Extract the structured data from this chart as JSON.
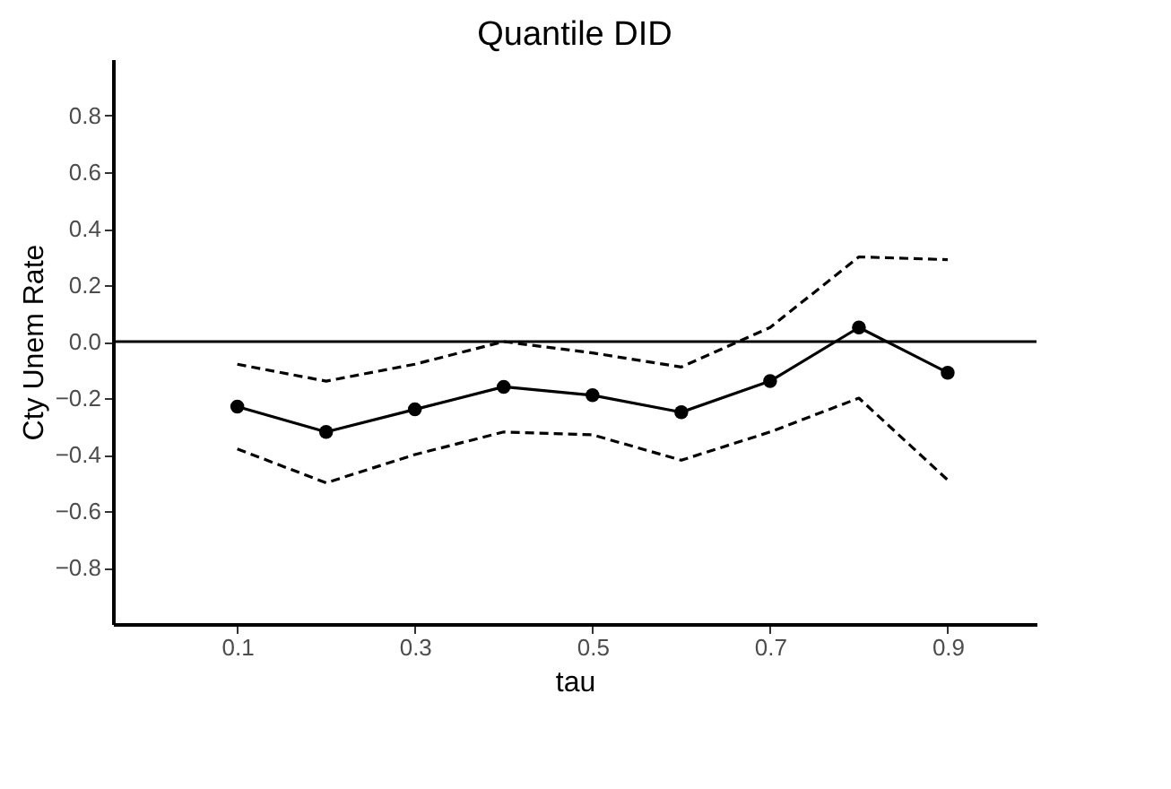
{
  "chart_data": {
    "type": "line",
    "title": "Quantile DID",
    "xlabel": "tau",
    "ylabel": "Cty Unem Rate",
    "x": [
      0.1,
      0.2,
      0.3,
      0.4,
      0.5,
      0.6,
      0.7,
      0.8,
      0.9
    ],
    "series": [
      {
        "color": "#000000",
        "marker": "none",
        "line_style": "dashed",
        "values": [
          -0.08,
          -0.14,
          -0.08,
          0.0,
          -0.04,
          -0.09,
          0.05,
          0.3,
          0.29
        ]
      },
      {
        "color": "#000000",
        "marker": "none",
        "line_style": "dashed",
        "values": [
          -0.38,
          -0.5,
          -0.4,
          -0.32,
          -0.33,
          -0.42,
          -0.32,
          -0.2,
          -0.49
        ]
      },
      {
        "color": "#000000",
        "marker": "circle",
        "line_style": "solid",
        "values": [
          -0.23,
          -0.32,
          -0.24,
          -0.16,
          -0.19,
          -0.25,
          -0.14,
          0.05,
          -0.11
        ]
      }
    ],
    "xlim": [
      -0.04,
      1.0
    ],
    "xticks": [
      0.1,
      0.3,
      0.5,
      0.7,
      0.9
    ],
    "ylim": [
      -1.0,
      1.0
    ],
    "yticks": [
      -0.8,
      -0.6,
      -0.4,
      -0.2,
      {
        "value": 0,
        "label": "0.0"
      },
      0.2,
      0.4,
      0.6,
      0.8
    ],
    "ref_lines": [
      {
        "axis": "y",
        "value": 0,
        "color": "#000000",
        "line_style": "solid"
      }
    ],
    "grid": false
  }
}
